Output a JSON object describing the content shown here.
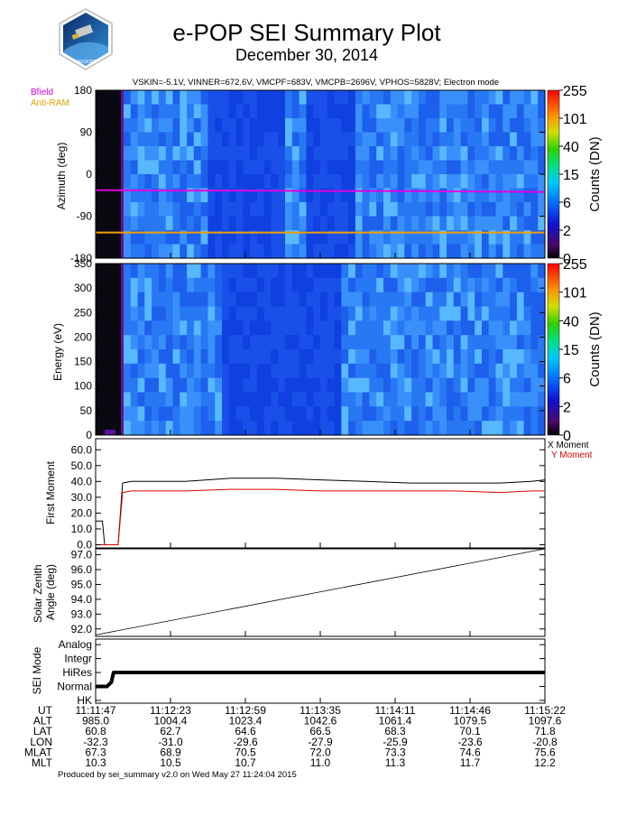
{
  "header": {
    "title": "e-POP SEI Summary Plot",
    "date": "December 30, 2014",
    "logo_text": "CASSIOPE",
    "params": "VSKIN=-5.1V, VINNER=672.6V, VMCPF=683V, VMCPB=2696V, VPHOS=5828V; Electron mode"
  },
  "footer": {
    "produced": "Produced by sei_summary v2.0 on Wed May 27 11:24:04 2015"
  },
  "colors": {
    "bfield": "#e000e0",
    "antiram": "#f0a000",
    "x_moment": "#000000",
    "y_moment": "#e00000",
    "background_band": "#0a0810"
  },
  "chart_data": [
    {
      "type": "heatmap",
      "name": "azimuth-spectrogram",
      "ylabel": "Azimuth (deg)",
      "ylim": [
        -180,
        180
      ],
      "yticks": [
        "180",
        "90",
        "0",
        "-90",
        "-180"
      ],
      "ytick_values": [
        180,
        90,
        0,
        -90,
        -180
      ],
      "overlays": [
        {
          "name": "Bfield",
          "label": "Bfield",
          "values": [
            -34,
            -35,
            -35,
            -36,
            -36,
            -37,
            -38
          ]
        },
        {
          "name": "Anti-RAM",
          "label": "Anti-RAM",
          "values": [
            -125,
            -125,
            -125,
            -125,
            -125,
            -125,
            -125
          ]
        }
      ],
      "colorbar": {
        "label": "Counts (DN)",
        "ticks": [
          "255",
          "101",
          "40",
          "15",
          "6",
          "2",
          "0"
        ]
      }
    },
    {
      "type": "heatmap",
      "name": "energy-spectrogram",
      "ylabel": "Energy (eV)",
      "ylim": [
        0,
        350
      ],
      "yticks": [
        "350",
        "300",
        "250",
        "200",
        "150",
        "100",
        "50",
        "0"
      ],
      "ytick_values": [
        350,
        300,
        250,
        200,
        150,
        100,
        50,
        0
      ],
      "colorbar": {
        "label": "Counts (DN)",
        "ticks": [
          "255",
          "101",
          "40",
          "15",
          "6",
          "2",
          "0"
        ]
      }
    },
    {
      "type": "line",
      "name": "first-moment",
      "ylabel": "First Moment",
      "ylim": [
        -2,
        67
      ],
      "yticks": [
        "60.0",
        "50.0",
        "40.0",
        "30.0",
        "20.0",
        "10.0",
        "0.0"
      ],
      "ytick_values": [
        60,
        50,
        40,
        30,
        20,
        10,
        0
      ],
      "x": [
        0,
        0.015,
        0.02,
        0.05,
        0.06,
        0.08,
        0.1,
        0.2,
        0.3,
        0.4,
        0.5,
        0.6,
        0.7,
        0.8,
        0.9,
        0.97,
        1.0
      ],
      "series": [
        {
          "name": "X Moment",
          "values": [
            15,
            15,
            0,
            0,
            39,
            40,
            40,
            40,
            42,
            42,
            41,
            40,
            39,
            39,
            39,
            40,
            41
          ]
        },
        {
          "name": "Y Moment",
          "values": [
            0,
            0,
            0,
            0,
            33,
            34,
            34,
            34,
            35,
            35,
            34,
            34,
            34,
            34,
            33,
            34,
            34
          ]
        }
      ]
    },
    {
      "type": "line",
      "name": "solar-zenith-angle",
      "ylabel": "Solar Zenith Angle (deg)",
      "ylabel_lines": [
        "Solar Zenith",
        "Angle (deg)"
      ],
      "ylim": [
        91.5,
        97.4
      ],
      "yticks": [
        "97.0",
        "96.0",
        "95.0",
        "94.0",
        "93.0",
        "92.0"
      ],
      "ytick_values": [
        97,
        96,
        95,
        94,
        93,
        92
      ],
      "x": [
        0,
        1
      ],
      "series": [
        {
          "name": "SZA",
          "values": [
            91.6,
            97.4
          ]
        }
      ]
    },
    {
      "type": "line",
      "name": "sei-mode",
      "ylabel": "SEI Mode",
      "ylim": [
        -0.2,
        4.4
      ],
      "yticks": [
        "Analog",
        "Integr",
        "HiRes",
        "Normal",
        "HK"
      ],
      "ytick_values": [
        4,
        3,
        2,
        1,
        0
      ],
      "x": [
        0,
        0.025,
        0.035,
        0.04,
        1
      ],
      "series": [
        {
          "name": "Mode",
          "values": [
            1,
            1,
            1.3,
            2,
            2
          ]
        }
      ]
    }
  ],
  "time_axis": {
    "rows": [
      {
        "label": "UT",
        "values": [
          "11:11:47",
          "11:12:23",
          "11:12:59",
          "11:13:35",
          "11:14:11",
          "11:14:46",
          "11:15:22"
        ]
      },
      {
        "label": "ALT",
        "values": [
          "985.0",
          "1004.4",
          "1023.4",
          "1042.6",
          "1061.4",
          "1079.5",
          "1097.6"
        ]
      },
      {
        "label": "LAT",
        "values": [
          "60.8",
          "62.7",
          "64.6",
          "66.5",
          "68.3",
          "70.1",
          "71.8"
        ]
      },
      {
        "label": "LON",
        "values": [
          "-32.3",
          "-31.0",
          "-29.6",
          "-27.9",
          "-25.9",
          "-23.6",
          "-20.8"
        ]
      },
      {
        "label": "MLAT",
        "values": [
          "67.3",
          "68.9",
          "70.5",
          "72.0",
          "73.3",
          "74.6",
          "75.6"
        ]
      },
      {
        "label": "MLT",
        "values": [
          "10.3",
          "10.5",
          "10.7",
          "11.0",
          "11.3",
          "11.7",
          "12.2"
        ]
      }
    ]
  }
}
